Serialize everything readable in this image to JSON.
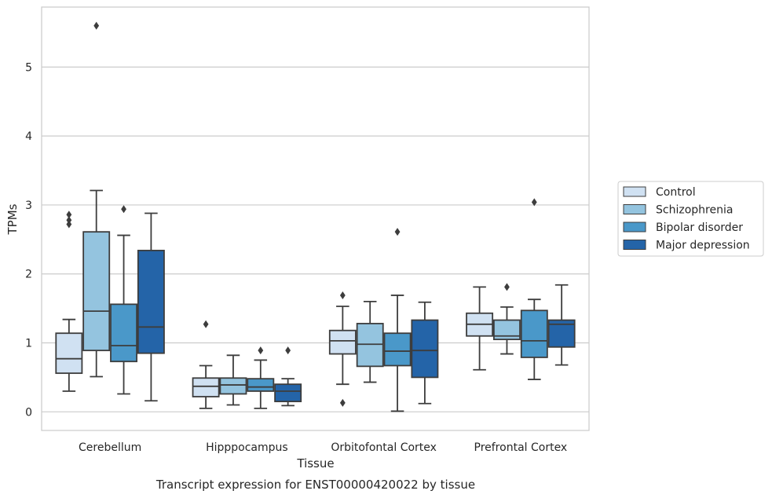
{
  "caption": "Transcript expression for ENST00000420022 by tissue",
  "chart_data": {
    "type": "box",
    "xlabel": "Tissue",
    "ylabel": "TPMs",
    "ylim": [
      -0.27,
      5.87
    ],
    "yticks": [
      0,
      1,
      2,
      3,
      4,
      5
    ],
    "grid": "horizontal",
    "legend_position": "right",
    "categories": [
      "Cerebellum",
      "Hipppocampus",
      "Orbitofontal Cortex",
      "Prefrontal Cortex"
    ],
    "series": [
      {
        "name": "Control",
        "color": "#d0e1f2",
        "boxes": [
          {
            "q1": 0.56,
            "median": 0.77,
            "q3": 1.14,
            "whisker_low": 0.3,
            "whisker_high": 1.34,
            "outliers": [
              2.72,
              2.78,
              2.86
            ]
          },
          {
            "q1": 0.22,
            "median": 0.37,
            "q3": 0.49,
            "whisker_low": 0.05,
            "whisker_high": 0.67,
            "outliers": [
              1.27
            ]
          },
          {
            "q1": 0.84,
            "median": 1.03,
            "q3": 1.18,
            "whisker_low": 0.4,
            "whisker_high": 1.53,
            "outliers": [
              0.13,
              1.69
            ]
          },
          {
            "q1": 1.1,
            "median": 1.27,
            "q3": 1.43,
            "whisker_low": 0.61,
            "whisker_high": 1.81,
            "outliers": []
          }
        ]
      },
      {
        "name": "Schizophrenia",
        "color": "#94c4df",
        "boxes": [
          {
            "q1": 0.89,
            "median": 1.46,
            "q3": 2.61,
            "whisker_low": 0.51,
            "whisker_high": 3.21,
            "outliers": [
              5.6
            ]
          },
          {
            "q1": 0.26,
            "median": 0.39,
            "q3": 0.49,
            "whisker_low": 0.1,
            "whisker_high": 0.82,
            "outliers": []
          },
          {
            "q1": 0.66,
            "median": 0.98,
            "q3": 1.28,
            "whisker_low": 0.43,
            "whisker_high": 1.6,
            "outliers": []
          },
          {
            "q1": 1.05,
            "median": 1.1,
            "q3": 1.33,
            "whisker_low": 0.84,
            "whisker_high": 1.52,
            "outliers": [
              1.81
            ]
          }
        ]
      },
      {
        "name": "Bipolar disorder",
        "color": "#4a98c9",
        "boxes": [
          {
            "q1": 0.73,
            "median": 0.96,
            "q3": 1.56,
            "whisker_low": 0.26,
            "whisker_high": 2.56,
            "outliers": [
              2.94
            ]
          },
          {
            "q1": 0.3,
            "median": 0.36,
            "q3": 0.48,
            "whisker_low": 0.05,
            "whisker_high": 0.75,
            "outliers": [
              0.89
            ]
          },
          {
            "q1": 0.67,
            "median": 0.88,
            "q3": 1.14,
            "whisker_low": 0.01,
            "whisker_high": 1.69,
            "outliers": [
              2.61
            ]
          },
          {
            "q1": 0.79,
            "median": 1.03,
            "q3": 1.47,
            "whisker_low": 0.47,
            "whisker_high": 1.63,
            "outliers": [
              3.04
            ]
          }
        ]
      },
      {
        "name": "Major depression",
        "color": "#2464a8",
        "boxes": [
          {
            "q1": 0.85,
            "median": 1.23,
            "q3": 2.34,
            "whisker_low": 0.16,
            "whisker_high": 2.88,
            "outliers": []
          },
          {
            "q1": 0.15,
            "median": 0.3,
            "q3": 0.4,
            "whisker_low": 0.09,
            "whisker_high": 0.48,
            "outliers": [
              0.89
            ]
          },
          {
            "q1": 0.5,
            "median": 0.89,
            "q3": 1.33,
            "whisker_low": 0.12,
            "whisker_high": 1.59,
            "outliers": []
          },
          {
            "q1": 0.94,
            "median": 1.27,
            "q3": 1.33,
            "whisker_low": 0.68,
            "whisker_high": 1.84,
            "outliers": []
          }
        ]
      }
    ]
  }
}
